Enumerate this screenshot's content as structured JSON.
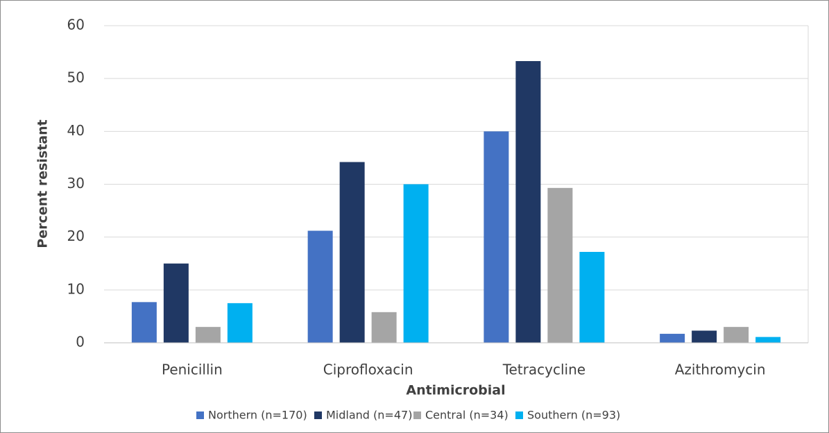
{
  "chart_data": {
    "type": "bar",
    "x_label": "Antimicrobial",
    "y_label": "Percent resistant",
    "categories": [
      "Penicillin",
      "Ciprofloxacin",
      "Tetracycline",
      "Azithromycin"
    ],
    "series": [
      {
        "name": "Northern (n=170)",
        "color": "#4472c4",
        "values": [
          7.7,
          21.2,
          40,
          1.7
        ]
      },
      {
        "name": "Midland (n=47)",
        "color": "#203864",
        "values": [
          15,
          34.2,
          53.3,
          2.3
        ]
      },
      {
        "name": "Central (n=34)",
        "color": "#a5a5a5",
        "values": [
          3,
          5.8,
          29.3,
          3
        ]
      },
      {
        "name": "Southern (n=93)",
        "color": "#00b0f0",
        "values": [
          7.5,
          30,
          17.2,
          1.1
        ]
      }
    ],
    "ylim": [
      0,
      60
    ],
    "yticks": [
      0,
      10,
      20,
      30,
      40,
      50,
      60
    ],
    "grid": true,
    "legend": "bottom"
  }
}
